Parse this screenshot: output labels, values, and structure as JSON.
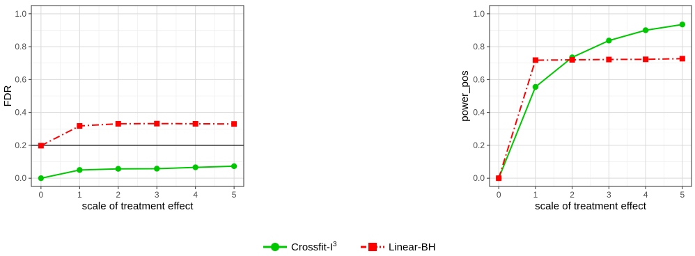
{
  "chart_data": [
    {
      "type": "line",
      "ylabel": "FDR",
      "xlabel": "scale of treatment effect",
      "x": [
        0,
        1,
        2,
        3,
        4,
        5
      ],
      "xlim": [
        0,
        5
      ],
      "ylim": [
        0,
        1
      ],
      "x_ticks": [
        "0",
        "1",
        "2",
        "3",
        "4",
        "5"
      ],
      "y_ticks": [
        "0.0",
        "0.2",
        "0.4",
        "0.6",
        "0.8",
        "1.0"
      ],
      "reference_line_y": 0.2,
      "grid": true,
      "series": [
        {
          "name": "Crossfit-I",
          "name_superscript": "3",
          "values": [
            0.0,
            0.05,
            0.057,
            0.058,
            0.066,
            0.073
          ]
        },
        {
          "name": "Linear-BH",
          "values": [
            0.198,
            0.318,
            0.331,
            0.332,
            0.331,
            0.33
          ]
        }
      ]
    },
    {
      "type": "line",
      "ylabel": "power_pos",
      "xlabel": "scale of treatment effect",
      "x": [
        0,
        1,
        2,
        3,
        4,
        5
      ],
      "xlim": [
        0,
        5
      ],
      "ylim": [
        0,
        1
      ],
      "x_ticks": [
        "0",
        "1",
        "2",
        "3",
        "4",
        "5"
      ],
      "y_ticks": [
        "0.0",
        "0.2",
        "0.4",
        "0.6",
        "0.8",
        "1.0"
      ],
      "grid": true,
      "series": [
        {
          "name": "Crossfit-I",
          "name_superscript": "3",
          "values": [
            0.0,
            0.555,
            0.735,
            0.837,
            0.9,
            0.935
          ]
        },
        {
          "name": "Linear-BH",
          "values": [
            0.0,
            0.718,
            0.72,
            0.722,
            0.723,
            0.727
          ]
        }
      ]
    }
  ],
  "legend": {
    "placement": "bottom",
    "items": [
      {
        "label": "Crossfit-I",
        "superscript": "3",
        "color": "#00c800",
        "marker": "circle",
        "line": "solid"
      },
      {
        "label": "Linear-BH",
        "color": "#ff0000",
        "marker": "square",
        "line": "dashdot"
      }
    ]
  },
  "colors": {
    "crossfit": "#00c800",
    "linear_bh": "#ff0000"
  }
}
